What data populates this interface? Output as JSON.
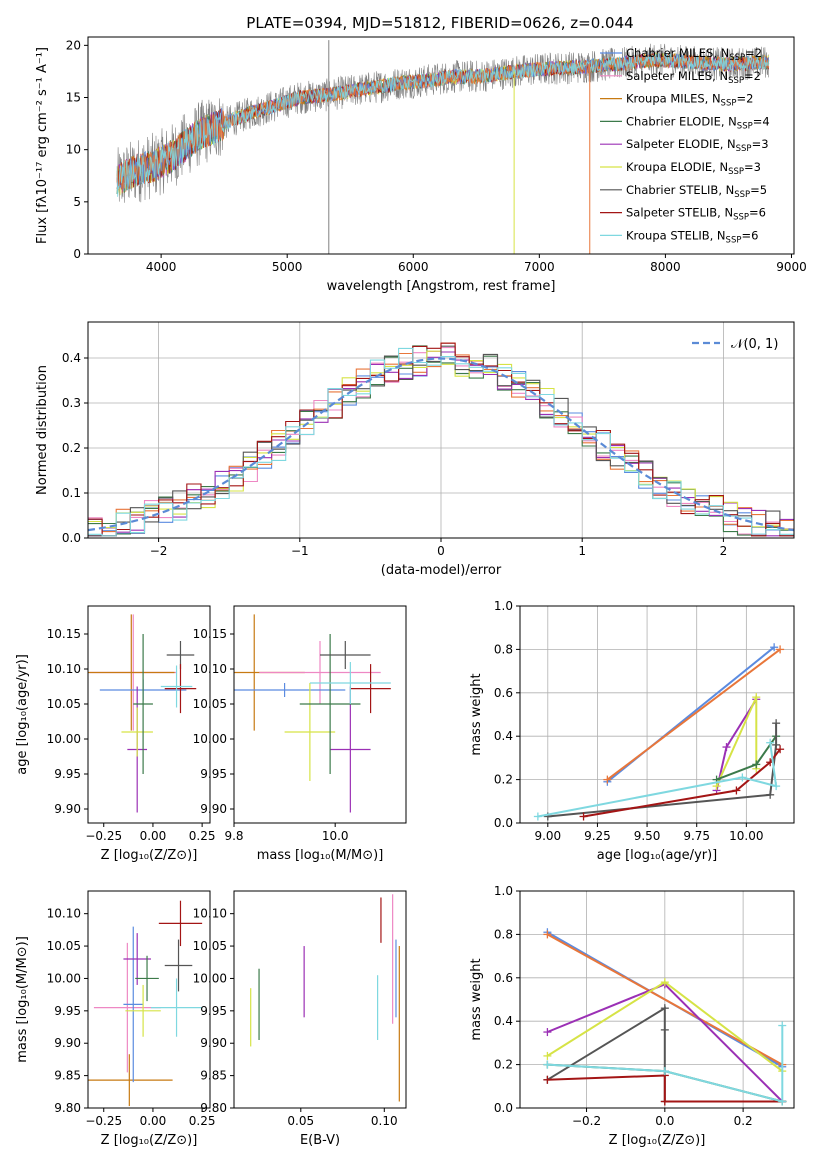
{
  "figure_title": "PLATE=0394, MJD=51812, FIBERID=0626, z=0.044",
  "colors": {
    "chabrier_miles": "#5b8be0",
    "salpeter_miles": "#ee88c4",
    "kroupa_miles": "#c77a12",
    "chabrier_elodie": "#3c7a4a",
    "salpeter_elodie": "#9b30b5",
    "kroupa_elodie": "#d6e346",
    "chabrier_stelib": "#555555",
    "salpeter_stelib": "#a31515",
    "kroupa_stelib": "#7fd8e0",
    "orange": "#e8763a",
    "observed": "#808080"
  },
  "chart_data": [
    {
      "id": "spectrum",
      "type": "line",
      "xlabel": "wavelength [Angstrom, rest frame]",
      "ylabel": "Flux [fλ10⁻¹⁷ erg cm⁻² s⁻¹ A⁻¹]",
      "xlim": [
        3420,
        9020
      ],
      "ylim": [
        0,
        20.8
      ],
      "xticks": [
        "4000",
        "5000",
        "6000",
        "7000",
        "8000",
        "9000"
      ],
      "yticks": [
        "0",
        "5",
        "10",
        "15",
        "20"
      ],
      "legend_position": "right",
      "legend": [
        {
          "label": "Chabrier MILES, N",
          "sub": "SSP",
          "tail": "=2",
          "color_key": "chabrier_miles"
        },
        {
          "label": "Salpeter MILES, N",
          "sub": "SSP",
          "tail": "=2",
          "color_key": "salpeter_miles"
        },
        {
          "label": "Kroupa MILES, N",
          "sub": "SSP",
          "tail": "=2",
          "color_key": "kroupa_miles"
        },
        {
          "label": "Chabrier ELODIE, N",
          "sub": "SSP",
          "tail": "=4",
          "color_key": "chabrier_elodie"
        },
        {
          "label": "Salpeter ELODIE, N",
          "sub": "SSP",
          "tail": "=3",
          "color_key": "salpeter_elodie"
        },
        {
          "label": "Kroupa ELODIE, N",
          "sub": "SSP",
          "tail": "=3",
          "color_key": "kroupa_elodie"
        },
        {
          "label": "Chabrier STELIB, N",
          "sub": "SSP",
          "tail": "=5",
          "color_key": "chabrier_stelib"
        },
        {
          "label": "Salpeter STELIB, N",
          "sub": "SSP",
          "tail": "=6",
          "color_key": "salpeter_stelib"
        },
        {
          "label": "Kroupa STELIB, N",
          "sub": "SSP",
          "tail": "=6",
          "color_key": "kroupa_stelib"
        }
      ],
      "observed_envelope": {
        "x": [
          3650,
          3800,
          3950,
          4100,
          4300,
          4500,
          4700,
          4900,
          5100,
          5300,
          5500,
          5700,
          5900,
          6100,
          6300,
          6500,
          6700,
          6900,
          7100,
          7300,
          7500,
          7700,
          7900,
          8100,
          8300,
          8500,
          8700,
          8800
        ],
        "y": [
          7,
          8,
          8.5,
          9.5,
          11.5,
          12.5,
          13.5,
          14.2,
          15,
          15.2,
          15.6,
          16,
          16.4,
          16.6,
          17,
          17,
          17.3,
          17.6,
          17.8,
          17.9,
          18.1,
          18.3,
          18.6,
          18.5,
          18.3,
          18.2,
          18.3,
          18.4
        ]
      },
      "dropouts": [
        {
          "x": 7400,
          "color_key": "orange",
          "from": 0,
          "to": 18.3
        },
        {
          "x": 6800,
          "color_key": "kroupa_elodie",
          "from": 0,
          "to": 17.5
        },
        {
          "x": 5330,
          "color_key": "observed",
          "from": 0,
          "to": 20.5
        }
      ]
    },
    {
      "id": "residuals",
      "type": "line",
      "xlabel": "(data-model)/error",
      "ylabel": "Normed distribution",
      "xlim": [
        -2.5,
        2.5
      ],
      "ylim": [
        0,
        0.48
      ],
      "xticks": [
        "−2",
        "−1",
        "0",
        "1",
        "2"
      ],
      "yticks": [
        "0.0",
        "0.1",
        "0.2",
        "0.3",
        "0.4"
      ],
      "grid": true,
      "legend_position": "top-right",
      "legend_label": "𝒩(0, 1)",
      "bin_width": 0.1,
      "bin_start": -2.5,
      "normal": {
        "mu": 0,
        "sigma": 1
      }
    },
    {
      "id": "age-z",
      "type": "scatter",
      "xlabel": "Z [log₁₀(Z/Z⊙)]",
      "ylabel": "age  [log₁₀(age/yr)]",
      "xlim": [
        -0.33,
        0.29
      ],
      "ylim": [
        9.88,
        10.19
      ],
      "xticks": [
        -0.25,
        0,
        0.25
      ],
      "xticklabels": [
        "−0.25",
        "0.00",
        "0.25"
      ],
      "yticks": [
        9.9,
        9.95,
        10.0,
        10.05,
        10.1,
        10.15
      ],
      "yticklabels": [
        "9.90",
        "9.95",
        "10.00",
        "10.05",
        "10.10",
        "10.15"
      ],
      "points": [
        {
          "color_key": "salpeter_miles",
          "x": -0.1,
          "xerr": 0.22,
          "y": 10.095,
          "yerr": 0.083
        },
        {
          "color_key": "kroupa_miles",
          "x": -0.11,
          "xerr": 0.22,
          "y": 10.095,
          "yerr": 0.083
        },
        {
          "color_key": "chabrier_miles",
          "x": -0.05,
          "xerr": 0.22,
          "y": 10.07,
          "yerr": 0.015
        },
        {
          "color_key": "salpeter_elodie",
          "x": -0.08,
          "xerr": 0.05,
          "y": 9.985,
          "yerr": 0.09
        },
        {
          "color_key": "kroupa_elodie",
          "x": -0.08,
          "xerr": 0.08,
          "y": 10.01,
          "yerr": 0.035
        },
        {
          "color_key": "chabrier_elodie",
          "x": -0.05,
          "xerr": 0.05,
          "y": 10.05,
          "yerr": 0.1
        },
        {
          "color_key": "chabrier_stelib",
          "x": 0.14,
          "xerr": 0.07,
          "y": 10.12,
          "yerr": 0.02
        },
        {
          "color_key": "salpeter_stelib",
          "x": 0.14,
          "xerr": 0.08,
          "y": 10.072,
          "yerr": 0.035
        },
        {
          "color_key": "kroupa_stelib",
          "x": 0.12,
          "xerr": 0.08,
          "y": 10.075,
          "yerr": 0.03
        }
      ]
    },
    {
      "id": "age-mass",
      "type": "scatter",
      "xlabel": "mass [log₁₀(M/M⊙)]",
      "xlim": [
        9.8,
        10.14
      ],
      "ylim": [
        9.88,
        10.19
      ],
      "xticks": [
        9.8,
        10.0
      ],
      "xticklabels": [
        "9.8",
        "10.0"
      ],
      "yticks": [
        9.9,
        9.95,
        10.0,
        10.05,
        10.1,
        10.15
      ],
      "yticklabels": [
        "9.90",
        "9.95",
        "10.00",
        "10.05",
        "10.10",
        "10.15"
      ],
      "points": [
        {
          "color_key": "kroupa_miles",
          "x": 9.84,
          "xerr": 0.1,
          "y": 10.095,
          "yerr": 0.083
        },
        {
          "color_key": "salpeter_miles",
          "x": 9.97,
          "xerr": 0.12,
          "y": 10.095,
          "yerr": 0.045
        },
        {
          "color_key": "chabrier_miles",
          "x": 9.9,
          "xerr": 0.12,
          "y": 10.07,
          "yerr": 0.01
        },
        {
          "color_key": "salpeter_elodie",
          "x": 10.03,
          "xerr": 0.04,
          "y": 9.985,
          "yerr": 0.09
        },
        {
          "color_key": "kroupa_elodie",
          "x": 9.95,
          "xerr": 0.05,
          "y": 10.01,
          "yerr": 0.07
        },
        {
          "color_key": "chabrier_elodie",
          "x": 9.99,
          "xerr": 0.06,
          "y": 10.05,
          "yerr": 0.1
        },
        {
          "color_key": "chabrier_stelib",
          "x": 10.02,
          "xerr": 0.05,
          "y": 10.12,
          "yerr": 0.02
        },
        {
          "color_key": "salpeter_stelib",
          "x": 10.07,
          "xerr": 0.04,
          "y": 10.072,
          "yerr": 0.035
        },
        {
          "color_key": "kroupa_stelib",
          "x": 10.03,
          "xerr": 0.08,
          "y": 10.08,
          "yerr": 0.03
        }
      ]
    },
    {
      "id": "weight-age",
      "type": "line",
      "xlabel": "age  [log₁₀(age/yr)]",
      "ylabel": "mass weight",
      "xlim": [
        8.86,
        10.24
      ],
      "ylim": [
        0,
        1.0
      ],
      "xticks": [
        9.0,
        9.25,
        9.5,
        9.75,
        10.0
      ],
      "xticklabels": [
        "9.00",
        "9.25",
        "9.50",
        "9.75",
        "10.00"
      ],
      "yticks": [
        0,
        0.2,
        0.4,
        0.6,
        0.8,
        1.0
      ],
      "yticklabels": [
        "0.0",
        "0.2",
        "0.4",
        "0.6",
        "0.8",
        "1.0"
      ],
      "grid": true,
      "series": [
        {
          "color_key": "chabrier_miles",
          "x": [
            9.3,
            10.14
          ],
          "y": [
            0.19,
            0.81
          ]
        },
        {
          "color_key": "orange",
          "x": [
            9.3,
            10.17
          ],
          "y": [
            0.2,
            0.8
          ]
        },
        {
          "color_key": "salpeter_elodie",
          "x": [
            9.85,
            9.9,
            10.05
          ],
          "y": [
            0.15,
            0.35,
            0.57
          ]
        },
        {
          "color_key": "kroupa_elodie",
          "x": [
            9.85,
            10.05,
            10.05
          ],
          "y": [
            0.17,
            0.58,
            0.25
          ]
        },
        {
          "color_key": "chabrier_elodie",
          "x": [
            9.85,
            10.05,
            10.15
          ],
          "y": [
            0.2,
            0.27,
            0.4
          ]
        },
        {
          "color_key": "chabrier_stelib",
          "x": [
            9.0,
            10.12,
            10.15,
            10.15
          ],
          "y": [
            0.03,
            0.13,
            0.36,
            0.46
          ]
        },
        {
          "color_key": "salpeter_stelib",
          "x": [
            9.18,
            9.95,
            10.12,
            10.17
          ],
          "y": [
            0.03,
            0.15,
            0.28,
            0.34
          ]
        },
        {
          "color_key": "kroupa_stelib",
          "x": [
            8.95,
            9.98,
            10.15,
            10.12
          ],
          "y": [
            0.03,
            0.21,
            0.17,
            0.37
          ]
        }
      ]
    },
    {
      "id": "mass-z",
      "type": "scatter",
      "xlabel": "Z [log₁₀(Z/Z⊙)]",
      "ylabel": "mass [log₁₀(M/M⊙)]",
      "xlim": [
        -0.33,
        0.29
      ],
      "ylim": [
        9.8,
        10.135
      ],
      "xticks": [
        -0.25,
        0,
        0.25
      ],
      "xticklabels": [
        "−0.25",
        "0.00",
        "0.25"
      ],
      "yticks": [
        9.8,
        9.85,
        9.9,
        9.95,
        10.0,
        10.05,
        10.1
      ],
      "yticklabels": [
        "9.80",
        "9.85",
        "9.90",
        "9.95",
        "10.00",
        "10.05",
        "10.10"
      ],
      "points": [
        {
          "color_key": "kroupa_miles",
          "x": -0.12,
          "xerr": 0.22,
          "y": 9.843,
          "yerr": 0.04
        },
        {
          "color_key": "salpeter_miles",
          "x": -0.13,
          "xerr": 0.17,
          "y": 9.955,
          "yerr": 0.1
        },
        {
          "color_key": "chabrier_miles",
          "x": -0.1,
          "xerr": 0.05,
          "y": 9.96,
          "yerr": 0.12
        },
        {
          "color_key": "salpeter_elodie",
          "x": -0.08,
          "xerr": 0.07,
          "y": 10.03,
          "yerr": 0.04
        },
        {
          "color_key": "kroupa_elodie",
          "x": -0.05,
          "xerr": 0.09,
          "y": 9.95,
          "yerr": 0.04
        },
        {
          "color_key": "chabrier_elodie",
          "x": -0.03,
          "xerr": 0.06,
          "y": 10.0,
          "yerr": 0.035
        },
        {
          "color_key": "chabrier_stelib",
          "x": 0.13,
          "xerr": 0.07,
          "y": 10.02,
          "yerr": 0.04
        },
        {
          "color_key": "salpeter_stelib",
          "x": 0.14,
          "xerr": 0.11,
          "y": 10.085,
          "yerr": 0.035
        },
        {
          "color_key": "kroupa_stelib",
          "x": 0.12,
          "xerr": 0.13,
          "y": 9.955,
          "yerr": 0.045
        }
      ]
    },
    {
      "id": "mass-ebv",
      "type": "scatter",
      "xlabel": "E(B-V)",
      "xlim": [
        0.01,
        0.113
      ],
      "ylim": [
        9.8,
        10.135
      ],
      "xticks": [
        0.05,
        0.1
      ],
      "xticklabels": [
        "0.05",
        "0.10"
      ],
      "yticks": [
        9.8,
        9.85,
        9.9,
        9.95,
        10.0,
        10.05,
        10.1
      ],
      "yticklabels": [
        "9.80",
        "9.85",
        "9.90",
        "9.95",
        "10.00",
        "10.05",
        "10.10"
      ],
      "points": [
        {
          "color_key": "kroupa_elodie",
          "x": 0.02,
          "xerr": 0,
          "y": 9.94,
          "yerr": 0.045
        },
        {
          "color_key": "chabrier_elodie",
          "x": 0.025,
          "xerr": 0,
          "y": 9.96,
          "yerr": 0.055
        },
        {
          "color_key": "salpeter_elodie",
          "x": 0.052,
          "xerr": 0,
          "y": 9.995,
          "yerr": 0.055
        },
        {
          "color_key": "kroupa_stelib",
          "x": 0.096,
          "xerr": 0,
          "y": 9.955,
          "yerr": 0.05
        },
        {
          "color_key": "salpeter_stelib",
          "x": 0.098,
          "xerr": 0,
          "y": 10.09,
          "yerr": 0.035
        },
        {
          "color_key": "salpeter_miles",
          "x": 0.105,
          "xerr": 0,
          "y": 10.03,
          "yerr": 0.1
        },
        {
          "color_key": "chabrier_miles",
          "x": 0.107,
          "xerr": 0,
          "y": 10.0,
          "yerr": 0.06
        },
        {
          "color_key": "kroupa_miles",
          "x": 0.109,
          "xerr": 0,
          "y": 9.93,
          "yerr": 0.12
        }
      ]
    },
    {
      "id": "weight-z",
      "type": "line",
      "xlabel": "Z [log₁₀(Z/Z⊙)]",
      "ylabel": "mass weight",
      "xlim": [
        -0.37,
        0.33
      ],
      "ylim": [
        0,
        1.0
      ],
      "xticks": [
        -0.2,
        0,
        0.2
      ],
      "xticklabels": [
        "−0.2",
        "0.0",
        "0.2"
      ],
      "yticks": [
        0,
        0.2,
        0.4,
        0.6,
        0.8,
        1.0
      ],
      "yticklabels": [
        "0.0",
        "0.2",
        "0.4",
        "0.6",
        "0.8",
        "1.0"
      ],
      "grid": true,
      "series": [
        {
          "color_key": "chabrier_miles",
          "x": [
            -0.3,
            0.3
          ],
          "y": [
            0.81,
            0.19
          ]
        },
        {
          "color_key": "orange",
          "x": [
            -0.3,
            0.3
          ],
          "y": [
            0.8,
            0.2
          ]
        },
        {
          "color_key": "salpeter_elodie",
          "x": [
            -0.3,
            0.0,
            0.3
          ],
          "y": [
            0.35,
            0.57,
            0.03
          ]
        },
        {
          "color_key": "kroupa_elodie",
          "x": [
            -0.3,
            0.0,
            0.3
          ],
          "y": [
            0.24,
            0.58,
            0.17
          ]
        },
        {
          "color_key": "chabrier_stelib",
          "x": [
            -0.3,
            0.0,
            0.0,
            0.0,
            0.3
          ],
          "y": [
            0.13,
            0.46,
            0.36,
            0.03,
            0.03
          ]
        },
        {
          "color_key": "salpeter_stelib",
          "x": [
            -0.3,
            0.0,
            0.0,
            0.3
          ],
          "y": [
            0.13,
            0.15,
            0.03,
            0.03
          ]
        },
        {
          "color_key": "chabrier_elodie",
          "x": [
            -0.3,
            0.0,
            0.3
          ],
          "y": [
            0.2,
            0.17,
            0.03
          ]
        },
        {
          "color_key": "kroupa_stelib",
          "x": [
            -0.3,
            0.0,
            0.3,
            0.3
          ],
          "y": [
            0.2,
            0.17,
            0.03,
            0.38
          ]
        }
      ]
    }
  ]
}
